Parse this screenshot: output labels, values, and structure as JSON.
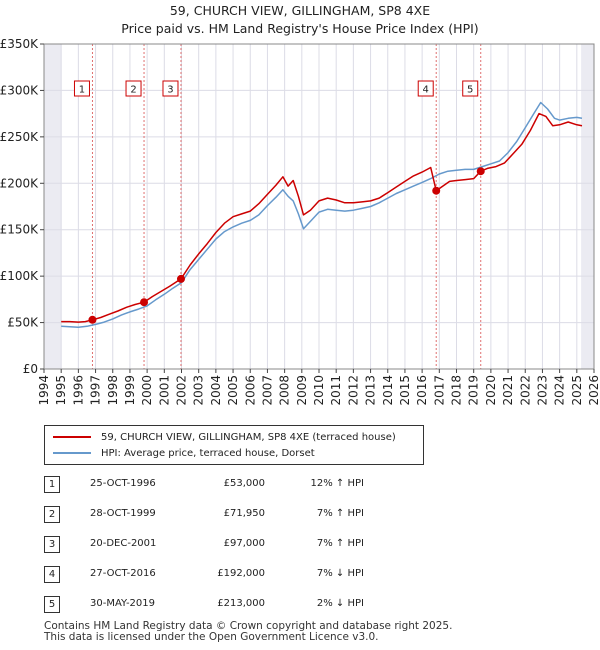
{
  "title_line1": "59, CHURCH VIEW, GILLINGHAM, SP8 4XE",
  "title_line2": "Price paid vs. HM Land Registry's House Price Index (HPI)",
  "chart_data": {
    "type": "line",
    "xlim": [
      1994,
      2026
    ],
    "ylim": [
      0,
      350000
    ],
    "x_ticks": [
      "1994",
      "1995",
      "1996",
      "1997",
      "1998",
      "1999",
      "2000",
      "2001",
      "2002",
      "2003",
      "2004",
      "2005",
      "2006",
      "2007",
      "2008",
      "2009",
      "2010",
      "2011",
      "2012",
      "2013",
      "2014",
      "2015",
      "2016",
      "2017",
      "2018",
      "2019",
      "2020",
      "2021",
      "2022",
      "2023",
      "2024",
      "2025",
      "2026"
    ],
    "y_ticks": [
      {
        "value": 0,
        "label": "£0"
      },
      {
        "value": 50000,
        "label": "£50K"
      },
      {
        "value": 100000,
        "label": "£100K"
      },
      {
        "value": 150000,
        "label": "£150K"
      },
      {
        "value": 200000,
        "label": "£200K"
      },
      {
        "value": 250000,
        "label": "£250K"
      },
      {
        "value": 300000,
        "label": "£300K"
      },
      {
        "value": 350000,
        "label": "£350K"
      }
    ],
    "grid": true,
    "shaded_ranges": [
      [
        1994,
        1995
      ],
      [
        2025.25,
        2026
      ]
    ],
    "series": [
      {
        "name": "59, CHURCH VIEW, GILLINGHAM, SP8 4XE (terraced house)",
        "color": "#cc0000",
        "x": [
          1995.0,
          1995.5,
          1996.0,
          1996.4,
          1996.82,
          1997.3,
          1997.8,
          1998.3,
          1998.8,
          1999.3,
          1999.82,
          2000.3,
          2000.8,
          2001.3,
          2001.97,
          2002.5,
          2003.0,
          2003.5,
          2004.0,
          2004.5,
          2005.0,
          2005.5,
          2006.0,
          2006.5,
          2007.0,
          2007.5,
          2007.9,
          2008.2,
          2008.5,
          2008.8,
          2009.1,
          2009.5,
          2010.0,
          2010.5,
          2011.0,
          2011.5,
          2012.0,
          2012.5,
          2013.0,
          2013.5,
          2014.0,
          2014.5,
          2015.0,
          2015.5,
          2016.0,
          2016.5,
          2016.82,
          2017.2,
          2017.6,
          2018.0,
          2018.5,
          2019.0,
          2019.41,
          2019.8,
          2020.3,
          2020.8,
          2021.3,
          2021.8,
          2022.3,
          2022.8,
          2023.2,
          2023.6,
          2024.0,
          2024.5,
          2025.0,
          2025.3
        ],
        "values": [
          51000,
          51000,
          50500,
          51000,
          53000,
          55500,
          59000,
          62500,
          66500,
          69500,
          71950,
          78000,
          83500,
          89000,
          97000,
          112000,
          124000,
          135000,
          147000,
          157000,
          164000,
          167000,
          170000,
          178000,
          188000,
          198000,
          207000,
          197000,
          203000,
          186000,
          166000,
          171000,
          181000,
          184000,
          182000,
          179000,
          179000,
          180000,
          181000,
          184000,
          190000,
          196000,
          202000,
          208000,
          212000,
          217000,
          192000,
          197000,
          202000,
          203000,
          204000,
          205000,
          213000,
          216000,
          218000,
          222000,
          232000,
          242000,
          257000,
          275000,
          272000,
          262000,
          263000,
          266000,
          263000,
          262000
        ]
      },
      {
        "name": "HPI: Average price, terraced house, Dorset",
        "color": "#6699cc",
        "x": [
          1995.0,
          1995.5,
          1996.0,
          1996.5,
          1997.0,
          1997.5,
          1998.0,
          1998.5,
          1999.0,
          1999.5,
          2000.0,
          2000.5,
          2001.0,
          2001.5,
          2002.0,
          2002.5,
          2003.0,
          2003.5,
          2004.0,
          2004.5,
          2005.0,
          2005.5,
          2006.0,
          2006.5,
          2007.0,
          2007.5,
          2007.9,
          2008.2,
          2008.5,
          2008.8,
          2009.1,
          2009.5,
          2010.0,
          2010.5,
          2011.0,
          2011.5,
          2012.0,
          2012.5,
          2013.0,
          2013.5,
          2014.0,
          2014.5,
          2015.0,
          2015.5,
          2016.0,
          2016.5,
          2017.0,
          2017.5,
          2018.0,
          2018.5,
          2019.0,
          2019.5,
          2020.0,
          2020.5,
          2021.0,
          2021.5,
          2022.0,
          2022.5,
          2022.9,
          2023.3,
          2023.7,
          2024.0,
          2024.5,
          2025.0,
          2025.3
        ],
        "values": [
          46000,
          45500,
          45000,
          46000,
          48000,
          50500,
          54000,
          58000,
          61500,
          64500,
          68000,
          74500,
          80500,
          87000,
          93000,
          107000,
          118000,
          129000,
          140000,
          148000,
          153000,
          157000,
          160000,
          166000,
          176000,
          185000,
          193000,
          186000,
          181000,
          167000,
          151000,
          159000,
          169000,
          172000,
          171000,
          170000,
          171000,
          173000,
          175000,
          179000,
          184000,
          189000,
          193000,
          197000,
          201000,
          205000,
          210000,
          213000,
          214000,
          215000,
          215000,
          218000,
          221000,
          224000,
          233000,
          245000,
          260000,
          275000,
          287000,
          280000,
          270000,
          268000,
          270000,
          271000,
          270000
        ]
      }
    ],
    "markers": [
      {
        "label": "1",
        "x": 1996.82,
        "y": 53000
      },
      {
        "label": "2",
        "x": 1999.82,
        "y": 71950
      },
      {
        "label": "3",
        "x": 2001.97,
        "y": 97000
      },
      {
        "label": "4",
        "x": 2016.82,
        "y": 192000
      },
      {
        "label": "5",
        "x": 2019.41,
        "y": 213000
      }
    ]
  },
  "legend": {
    "red_label": "59, CHURCH VIEW, GILLINGHAM, SP8 4XE (terraced house)",
    "blue_label": "HPI: Average price, terraced house, Dorset"
  },
  "sales": [
    {
      "num": "1",
      "date": "25-OCT-1996",
      "price": "£53,000",
      "hpi": "12% ↑ HPI"
    },
    {
      "num": "2",
      "date": "28-OCT-1999",
      "price": "£71,950",
      "hpi": "7% ↑ HPI"
    },
    {
      "num": "3",
      "date": "20-DEC-2001",
      "price": "£97,000",
      "hpi": "7% ↑ HPI"
    },
    {
      "num": "4",
      "date": "27-OCT-2016",
      "price": "£192,000",
      "hpi": "7% ↓ HPI"
    },
    {
      "num": "5",
      "date": "30-MAY-2019",
      "price": "£213,000",
      "hpi": "2% ↓ HPI"
    }
  ],
  "footer_line1": "Contains HM Land Registry data © Crown copyright and database right 2025.",
  "footer_line2": "This data is licensed under the Open Government Licence v3.0."
}
